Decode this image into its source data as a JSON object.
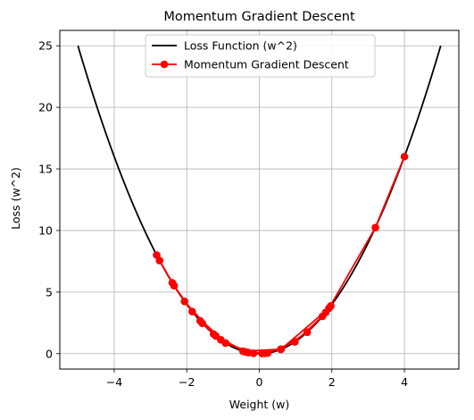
{
  "chart_data": {
    "type": "line",
    "title": "Momentum Gradient Descent",
    "xlabel": "Weight (w)",
    "ylabel": "Loss (w^2)",
    "xlim": [
      -5.5,
      5.5
    ],
    "ylim": [
      -1.25,
      26.25
    ],
    "xticks": [
      -4,
      -2,
      0,
      2,
      4
    ],
    "yticks": [
      0,
      5,
      10,
      15,
      20,
      25
    ],
    "xtick_labels": [
      "−4",
      "−2",
      "0",
      "2",
      "4"
    ],
    "ytick_labels": [
      "0",
      "5",
      "10",
      "15",
      "20",
      "25"
    ],
    "grid": true,
    "legend_position": "top-center",
    "series": [
      {
        "name": "Loss Function (w^2)",
        "color": "#000000",
        "marker": "none",
        "x_range": [
          -5,
          5
        ],
        "function": "w^2"
      },
      {
        "name": "Momentum Gradient Descent",
        "color": "#ff0000",
        "marker": "circle",
        "x": [
          4.0,
          3.2,
          1.92,
          0.6,
          -0.45,
          -1.26,
          -1.63,
          -1.57,
          -1.06,
          -0.3,
          0.23,
          0.98,
          1.74,
          1.97,
          1.83,
          1.32,
          0.59,
          -0.16,
          -0.93,
          -1.85,
          -2.35,
          -2.75,
          -2.83,
          -2.4,
          -2.06,
          -1.2,
          -0.38,
          0.16,
          0.08
        ],
        "y": [
          16.0,
          10.24,
          3.69,
          0.36,
          0.2,
          1.59,
          2.66,
          2.46,
          1.12,
          0.09,
          0.05,
          0.96,
          3.03,
          3.88,
          3.35,
          1.74,
          0.35,
          0.03,
          0.86,
          3.42,
          5.52,
          7.56,
          8.01,
          5.76,
          4.24,
          1.44,
          0.14,
          0.03,
          0.01
        ]
      }
    ]
  }
}
